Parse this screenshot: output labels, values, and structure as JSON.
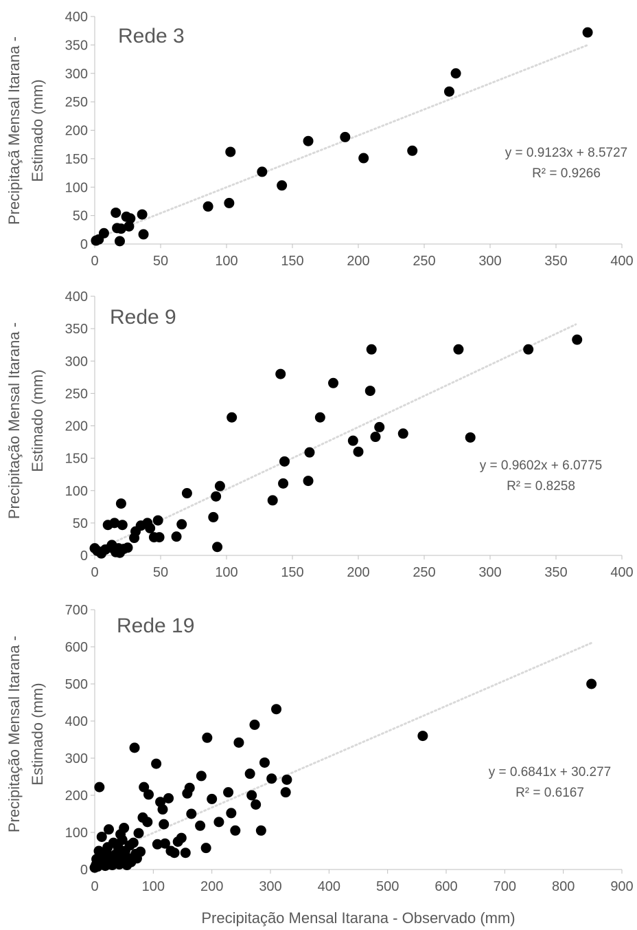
{
  "figure": {
    "x_axis_label": "Precipitação Mensal Itarana - Observado (mm)"
  },
  "chart_data": [
    {
      "type": "scatter",
      "title": "Rede 3",
      "ylabel_line1": "Precipitaçã Mensal Itarana -",
      "ylabel_line2": "Estimado (mm)",
      "xlim": [
        0,
        400
      ],
      "ylim": [
        0,
        400
      ],
      "x_ticks": [
        "0",
        "50",
        "100",
        "150",
        "200",
        "250",
        "300",
        "350",
        "400"
      ],
      "y_ticks": [
        "0",
        "50",
        "100",
        "150",
        "200",
        "250",
        "300",
        "350",
        "400"
      ],
      "equation": "y = 0.9123x + 8.5727",
      "r2": "R² = 0.9266",
      "trendline": {
        "slope": 0.9123,
        "intercept": 8.5727,
        "x_range": [
          0,
          375
        ]
      },
      "marker_color": "#000000",
      "trend_color": "#d9d9d9",
      "points": [
        [
          1,
          6
        ],
        [
          3,
          8
        ],
        [
          7,
          19
        ],
        [
          16,
          55
        ],
        [
          17,
          28
        ],
        [
          19,
          5
        ],
        [
          20,
          27
        ],
        [
          24,
          48
        ],
        [
          26,
          31
        ],
        [
          27,
          45
        ],
        [
          36,
          52
        ],
        [
          37,
          17
        ],
        [
          86,
          66
        ],
        [
          102,
          72
        ],
        [
          103,
          162
        ],
        [
          127,
          127
        ],
        [
          142,
          103
        ],
        [
          162,
          181
        ],
        [
          190,
          188
        ],
        [
          204,
          151
        ],
        [
          241,
          164
        ],
        [
          269,
          268
        ],
        [
          274,
          300
        ],
        [
          374,
          372
        ]
      ]
    },
    {
      "type": "scatter",
      "title": "Rede 9",
      "ylabel_line1": "Precipitação Mensal Itarana -",
      "ylabel_line2": "Estimado (mm)",
      "xlim": [
        0,
        400
      ],
      "ylim": [
        0,
        400
      ],
      "x_ticks": [
        "0",
        "50",
        "100",
        "150",
        "200",
        "250",
        "300",
        "350",
        "400"
      ],
      "y_ticks": [
        "0",
        "50",
        "100",
        "150",
        "200",
        "250",
        "300",
        "350",
        "400"
      ],
      "equation": "y = 0.9602x + 6.0775",
      "r2": "R² = 0.8258",
      "trendline": {
        "slope": 0.9602,
        "intercept": 6.0775,
        "x_range": [
          0,
          365
        ]
      },
      "marker_color": "#000000",
      "trend_color": "#d9d9d9",
      "points": [
        [
          0,
          11
        ],
        [
          2,
          7
        ],
        [
          5,
          3
        ],
        [
          8,
          9
        ],
        [
          10,
          47
        ],
        [
          12,
          12
        ],
        [
          13,
          16
        ],
        [
          15,
          50
        ],
        [
          16,
          5
        ],
        [
          18,
          11
        ],
        [
          19,
          4
        ],
        [
          20,
          80
        ],
        [
          21,
          47
        ],
        [
          22,
          10
        ],
        [
          25,
          12
        ],
        [
          30,
          27
        ],
        [
          31,
          37
        ],
        [
          35,
          46
        ],
        [
          40,
          50
        ],
        [
          42,
          42
        ],
        [
          45,
          28
        ],
        [
          48,
          54
        ],
        [
          49,
          28
        ],
        [
          62,
          29
        ],
        [
          66,
          48
        ],
        [
          70,
          96
        ],
        [
          90,
          59
        ],
        [
          92,
          91
        ],
        [
          93,
          13
        ],
        [
          95,
          107
        ],
        [
          104,
          213
        ],
        [
          135,
          85
        ],
        [
          141,
          280
        ],
        [
          143,
          111
        ],
        [
          144,
          145
        ],
        [
          162,
          115
        ],
        [
          163,
          159
        ],
        [
          171,
          213
        ],
        [
          181,
          266
        ],
        [
          196,
          177
        ],
        [
          200,
          160
        ],
        [
          209,
          254
        ],
        [
          210,
          318
        ],
        [
          213,
          183
        ],
        [
          216,
          198
        ],
        [
          234,
          188
        ],
        [
          276,
          318
        ],
        [
          285,
          182
        ],
        [
          329,
          318
        ],
        [
          366,
          333
        ]
      ]
    },
    {
      "type": "scatter",
      "title": "Rede 19",
      "ylabel_line1": "Precipitação Mensal Itarana -",
      "ylabel_line2": "Estimado (mm)",
      "xlim": [
        0,
        900
      ],
      "ylim": [
        0,
        700
      ],
      "x_ticks": [
        "0",
        "100",
        "200",
        "300",
        "400",
        "500",
        "600",
        "700",
        "800",
        "900"
      ],
      "y_ticks": [
        "0",
        "100",
        "200",
        "300",
        "400",
        "500",
        "600",
        "700"
      ],
      "equation": "y = 0.6841x + 30.277",
      "r2": "R² = 0.6167",
      "trendline": {
        "slope": 0.6841,
        "intercept": 30.277,
        "x_range": [
          0,
          850
        ]
      },
      "marker_color": "#000000",
      "trend_color": "#d9d9d9",
      "points": [
        [
          0,
          5
        ],
        [
          2,
          12
        ],
        [
          3,
          28
        ],
        [
          5,
          8
        ],
        [
          7,
          50
        ],
        [
          8,
          222
        ],
        [
          10,
          15
        ],
        [
          12,
          88
        ],
        [
          14,
          40
        ],
        [
          15,
          20
        ],
        [
          18,
          10
        ],
        [
          20,
          45
        ],
        [
          22,
          60
        ],
        [
          24,
          108
        ],
        [
          25,
          18
        ],
        [
          28,
          30
        ],
        [
          30,
          12
        ],
        [
          32,
          72
        ],
        [
          35,
          40
        ],
        [
          38,
          22
        ],
        [
          40,
          60
        ],
        [
          42,
          14
        ],
        [
          44,
          95
        ],
        [
          45,
          35
        ],
        [
          47,
          80
        ],
        [
          48,
          24
        ],
        [
          50,
          112
        ],
        [
          52,
          50
        ],
        [
          55,
          12
        ],
        [
          58,
          30
        ],
        [
          60,
          65
        ],
        [
          62,
          20
        ],
        [
          66,
          72
        ],
        [
          68,
          328
        ],
        [
          70,
          42
        ],
        [
          72,
          30
        ],
        [
          75,
          98
        ],
        [
          78,
          48
        ],
        [
          82,
          140
        ],
        [
          84,
          222
        ],
        [
          90,
          128
        ],
        [
          92,
          202
        ],
        [
          105,
          285
        ],
        [
          107,
          68
        ],
        [
          112,
          182
        ],
        [
          116,
          162
        ],
        [
          118,
          122
        ],
        [
          120,
          70
        ],
        [
          126,
          192
        ],
        [
          130,
          50
        ],
        [
          136,
          45
        ],
        [
          142,
          75
        ],
        [
          148,
          85
        ],
        [
          155,
          45
        ],
        [
          158,
          205
        ],
        [
          162,
          220
        ],
        [
          165,
          150
        ],
        [
          180,
          118
        ],
        [
          182,
          252
        ],
        [
          190,
          58
        ],
        [
          192,
          355
        ],
        [
          200,
          190
        ],
        [
          212,
          128
        ],
        [
          228,
          208
        ],
        [
          233,
          152
        ],
        [
          240,
          105
        ],
        [
          246,
          342
        ],
        [
          265,
          258
        ],
        [
          268,
          200
        ],
        [
          273,
          390
        ],
        [
          275,
          175
        ],
        [
          284,
          105
        ],
        [
          290,
          288
        ],
        [
          302,
          245
        ],
        [
          310,
          432
        ],
        [
          326,
          208
        ],
        [
          328,
          242
        ],
        [
          560,
          360
        ],
        [
          848,
          500
        ]
      ]
    }
  ]
}
